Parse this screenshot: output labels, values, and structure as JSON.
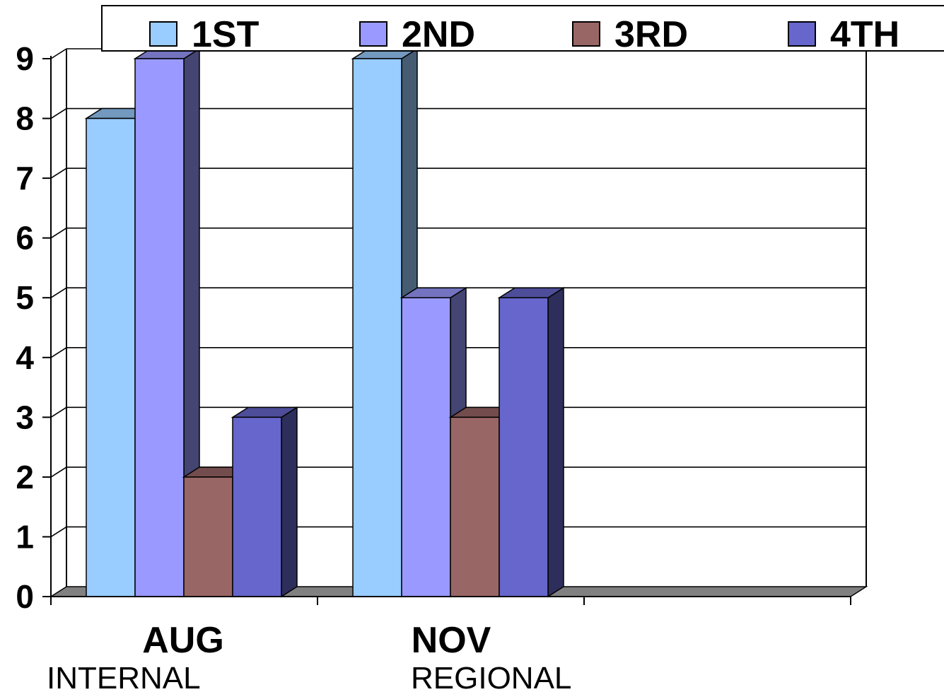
{
  "chart_data": {
    "type": "bar",
    "style": "3d-clustered-column",
    "categories": [
      "AUG",
      "NOV",
      ""
    ],
    "category_sublabels": [
      "INTERNAL",
      "REGIONAL"
    ],
    "series": [
      {
        "name": "1ST",
        "values": [
          8,
          9,
          null
        ],
        "color": "#99CCFF"
      },
      {
        "name": "2ND",
        "values": [
          9,
          5,
          null
        ],
        "color": "#9999FF"
      },
      {
        "name": "3RD",
        "values": [
          2,
          3,
          null
        ],
        "color": "#996666"
      },
      {
        "name": "4TH",
        "values": [
          3,
          5,
          null
        ],
        "color": "#6666CC"
      }
    ],
    "ylim": [
      0,
      9
    ],
    "yticks": [
      "0",
      "1",
      "2",
      "3",
      "4",
      "5",
      "6",
      "7",
      "8",
      "9"
    ],
    "grid": true,
    "legend_position": "top"
  }
}
